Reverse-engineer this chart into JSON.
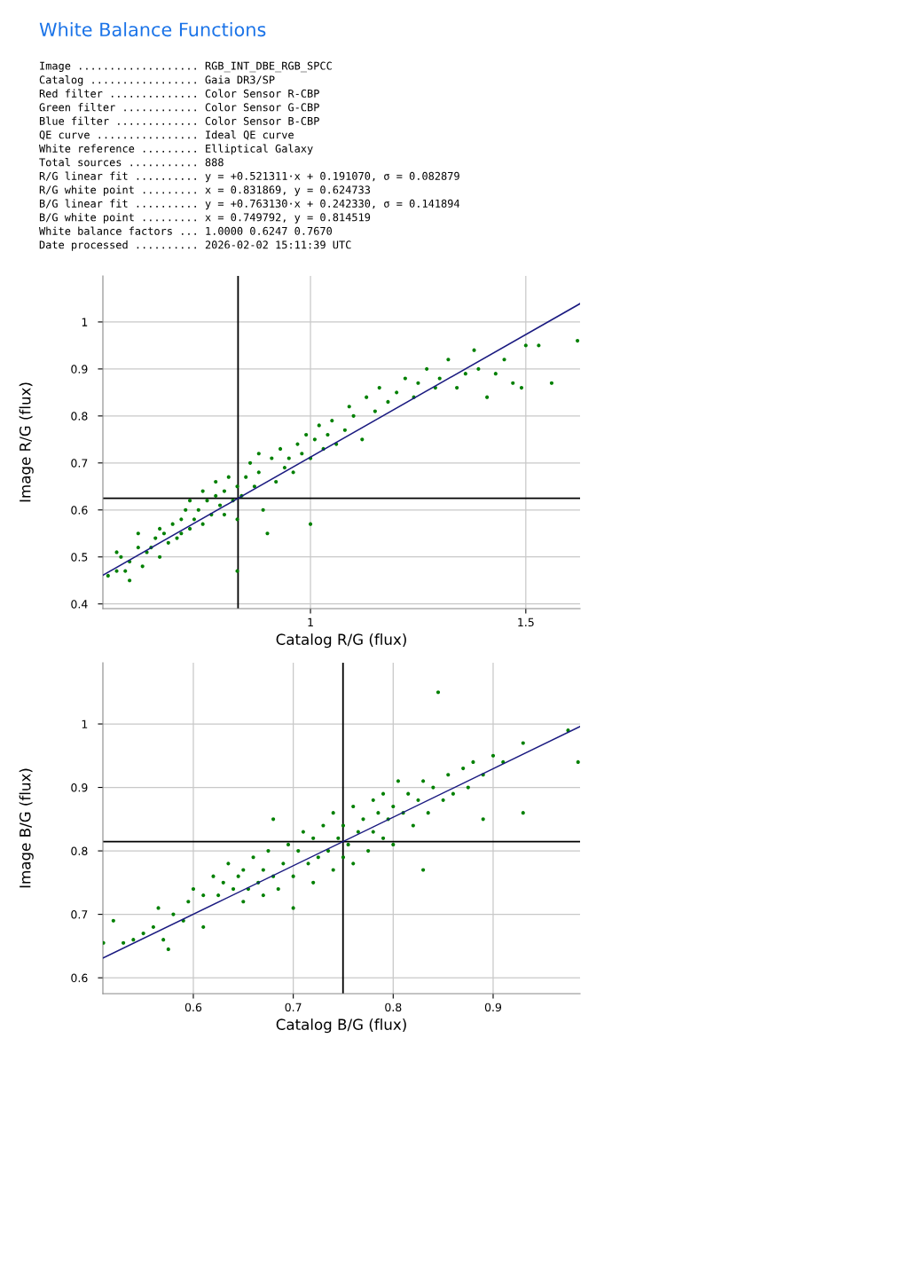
{
  "chart_data": [
    {
      "type": "other",
      "title": "White Balance Functions",
      "annotations": [
        "Image ................... RGB_INT_DBE_RGB_SPCC",
        "Catalog ................. Gaia DR3/SP",
        "Red filter .............. Color Sensor R-CBP",
        "Green filter ............ Color Sensor G-CBP",
        "Blue filter ............. Color Sensor B-CBP",
        "QE curve ................ Ideal QE curve",
        "White reference ......... Elliptical Galaxy",
        "Total sources ........... 888",
        "R/G linear fit .......... y = +0.521311·x + 0.191070, σ = 0.082879",
        "R/G white point ......... x = 0.831869, y = 0.624733",
        "B/G linear fit .......... y = +0.763130·x + 0.242330, σ = 0.141894",
        "B/G white point ......... x = 0.749792, y = 0.814519",
        "White balance factors ... 1.0000 0.6247 0.7670",
        "Date processed .......... 2026-02-02 15:11:39 UTC"
      ]
    },
    {
      "type": "scatter",
      "xlabel": "Catalog R/G (flux)",
      "ylabel": "Image R/G (flux)",
      "xlim": [
        0.518,
        1.626
      ],
      "ylim": [
        0.39,
        1.098
      ],
      "xticks": [
        1,
        1.5
      ],
      "yticks": [
        0.4,
        0.5,
        0.6,
        0.7,
        0.8,
        0.9,
        1
      ],
      "grid": true,
      "ref_lines": [
        {
          "axis": "x",
          "value": 0.831869,
          "color": "#000000"
        },
        {
          "axis": "y",
          "value": 0.624733,
          "color": "#000000"
        }
      ],
      "series": [
        {
          "type": "scatter",
          "marker": "circle",
          "color": "#008000",
          "x": [
            0.53,
            0.55,
            0.57,
            0.58,
            0.55,
            0.56,
            0.58,
            0.6,
            0.61,
            0.62,
            0.6,
            0.63,
            0.64,
            0.65,
            0.65,
            0.66,
            0.67,
            0.68,
            0.69,
            0.7,
            0.7,
            0.71,
            0.72,
            0.72,
            0.73,
            0.74,
            0.75,
            0.75,
            0.76,
            0.77,
            0.78,
            0.78,
            0.79,
            0.8,
            0.8,
            0.81,
            0.82,
            0.83,
            0.83,
            0.83,
            0.84,
            0.85,
            0.86,
            0.87,
            0.88,
            0.88,
            0.89,
            0.9,
            0.91,
            0.92,
            0.93,
            0.94,
            0.95,
            0.96,
            0.97,
            0.98,
            0.99,
            1.0,
            1.0,
            1.01,
            1.02,
            1.03,
            1.04,
            1.05,
            1.06,
            1.08,
            1.09,
            1.1,
            1.12,
            1.13,
            1.15,
            1.16,
            1.18,
            1.2,
            1.22,
            1.24,
            1.25,
            1.27,
            1.29,
            1.3,
            1.32,
            1.34,
            1.36,
            1.38,
            1.39,
            1.41,
            1.43,
            1.45,
            1.47,
            1.49,
            1.5,
            1.53,
            1.56,
            1.62
          ],
          "values": [
            0.46,
            0.47,
            0.47,
            0.45,
            0.51,
            0.5,
            0.49,
            0.52,
            0.48,
            0.51,
            0.55,
            0.52,
            0.54,
            0.5,
            0.56,
            0.55,
            0.53,
            0.57,
            0.54,
            0.58,
            0.55,
            0.6,
            0.56,
            0.62,
            0.58,
            0.6,
            0.57,
            0.64,
            0.62,
            0.59,
            0.63,
            0.66,
            0.61,
            0.64,
            0.59,
            0.67,
            0.62,
            0.65,
            0.58,
            0.47,
            0.63,
            0.67,
            0.7,
            0.65,
            0.72,
            0.68,
            0.6,
            0.55,
            0.71,
            0.66,
            0.73,
            0.69,
            0.71,
            0.68,
            0.74,
            0.72,
            0.76,
            0.71,
            0.57,
            0.75,
            0.78,
            0.73,
            0.76,
            0.79,
            0.74,
            0.77,
            0.82,
            0.8,
            0.75,
            0.84,
            0.81,
            0.86,
            0.83,
            0.85,
            0.88,
            0.84,
            0.87,
            0.9,
            0.86,
            0.88,
            0.92,
            0.86,
            0.89,
            0.94,
            0.9,
            0.84,
            0.89,
            0.92,
            0.87,
            0.86,
            0.95,
            0.95,
            0.87,
            0.96
          ]
        },
        {
          "type": "line",
          "color": "#1a1a80",
          "x": [
            0.518,
            1.626
          ],
          "values": [
            0.461,
            1.039
          ]
        }
      ]
    },
    {
      "type": "scatter",
      "xlabel": "Catalog B/G (flux)",
      "ylabel": "Image B/G (flux)",
      "xlim": [
        0.5095,
        0.987
      ],
      "ylim": [
        0.575,
        1.0965
      ],
      "xticks": [
        0.6,
        0.7,
        0.8,
        0.9
      ],
      "yticks": [
        0.6,
        0.7,
        0.8,
        0.9,
        1
      ],
      "grid": true,
      "ref_lines": [
        {
          "axis": "x",
          "value": 0.749792,
          "color": "#000000"
        },
        {
          "axis": "y",
          "value": 0.814519,
          "color": "#000000"
        }
      ],
      "series": [
        {
          "type": "scatter",
          "marker": "circle",
          "color": "#008000",
          "x": [
            0.51,
            0.52,
            0.53,
            0.54,
            0.55,
            0.56,
            0.565,
            0.57,
            0.575,
            0.58,
            0.59,
            0.595,
            0.6,
            0.61,
            0.61,
            0.62,
            0.625,
            0.63,
            0.635,
            0.64,
            0.645,
            0.65,
            0.65,
            0.655,
            0.66,
            0.665,
            0.67,
            0.67,
            0.675,
            0.68,
            0.68,
            0.685,
            0.69,
            0.695,
            0.7,
            0.7,
            0.705,
            0.71,
            0.715,
            0.72,
            0.72,
            0.725,
            0.73,
            0.735,
            0.74,
            0.74,
            0.745,
            0.75,
            0.75,
            0.755,
            0.76,
            0.76,
            0.765,
            0.77,
            0.775,
            0.78,
            0.78,
            0.785,
            0.79,
            0.79,
            0.795,
            0.8,
            0.8,
            0.805,
            0.81,
            0.815,
            0.82,
            0.825,
            0.83,
            0.83,
            0.835,
            0.84,
            0.845,
            0.85,
            0.855,
            0.86,
            0.87,
            0.875,
            0.88,
            0.89,
            0.89,
            0.9,
            0.91,
            0.93,
            0.93,
            0.975,
            0.985
          ],
          "values": [
            0.655,
            0.69,
            0.655,
            0.66,
            0.67,
            0.68,
            0.71,
            0.66,
            0.645,
            0.7,
            0.69,
            0.72,
            0.74,
            0.73,
            0.68,
            0.76,
            0.73,
            0.75,
            0.78,
            0.74,
            0.76,
            0.72,
            0.77,
            0.74,
            0.79,
            0.75,
            0.73,
            0.77,
            0.8,
            0.76,
            0.85,
            0.74,
            0.78,
            0.81,
            0.76,
            0.71,
            0.8,
            0.83,
            0.78,
            0.82,
            0.75,
            0.79,
            0.84,
            0.8,
            0.77,
            0.86,
            0.82,
            0.79,
            0.84,
            0.81,
            0.87,
            0.78,
            0.83,
            0.85,
            0.8,
            0.88,
            0.83,
            0.86,
            0.82,
            0.89,
            0.85,
            0.87,
            0.81,
            0.91,
            0.86,
            0.89,
            0.84,
            0.88,
            0.91,
            0.77,
            0.86,
            0.9,
            1.05,
            0.88,
            0.92,
            0.89,
            0.93,
            0.9,
            0.94,
            0.92,
            0.85,
            0.95,
            0.94,
            0.86,
            0.97,
            0.99,
            0.94
          ]
        },
        {
          "type": "line",
          "color": "#1a1a80",
          "x": [
            0.5095,
            0.987
          ],
          "values": [
            0.631,
            0.996
          ]
        }
      ]
    }
  ]
}
